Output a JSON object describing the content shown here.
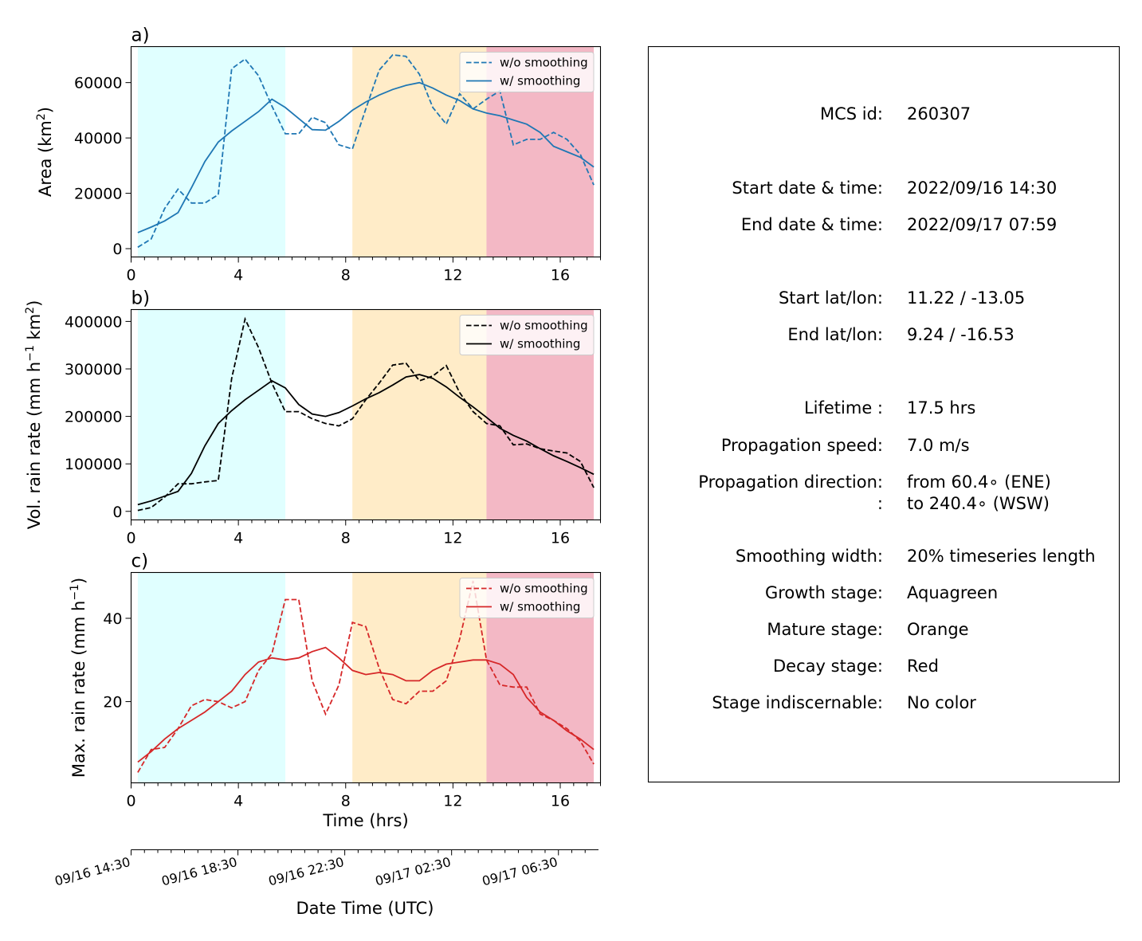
{
  "stage_colors": {
    "growth": "#e0ffff",
    "mature": "#ffecc8",
    "decay": "#f3b8c5"
  },
  "stage_spans": [
    {
      "stage": "growth",
      "start": 0.25,
      "end": 5.75
    },
    {
      "stage": "mature",
      "start": 8.25,
      "end": 13.25
    },
    {
      "stage": "decay",
      "start": 13.25,
      "end": 17.25
    }
  ],
  "legend": {
    "raw": "w/o smoothing",
    "smooth": "w/ smoothing"
  },
  "chart_data": [
    {
      "type": "line",
      "panel_label": "a)",
      "ylabel_main": "Area  (km",
      "ylabel_sup": "2",
      "ylabel_tail": ")",
      "color": "#1f77b4",
      "xlim": [
        0,
        17.5
      ],
      "ylim": [
        -3000,
        73000
      ],
      "xticks": [
        0,
        4,
        8,
        12,
        16
      ],
      "yticks": [
        0,
        20000,
        40000,
        60000
      ],
      "x": [
        0.25,
        0.75,
        1.25,
        1.75,
        2.25,
        2.75,
        3.25,
        3.75,
        4.25,
        4.75,
        5.25,
        5.75,
        6.25,
        6.75,
        7.25,
        7.75,
        8.25,
        8.75,
        9.25,
        9.75,
        10.25,
        10.75,
        11.25,
        11.75,
        12.25,
        12.75,
        13.25,
        13.75,
        14.25,
        14.75,
        15.25,
        15.75,
        16.25,
        16.75,
        17.25
      ],
      "series": [
        {
          "name": "w/o smoothing",
          "style": "dashed",
          "values": [
            500,
            3500,
            14500,
            21500,
            16500,
            16500,
            19500,
            65000,
            68500,
            62500,
            51500,
            41500,
            41500,
            47500,
            45500,
            37500,
            36000,
            50500,
            64500,
            70000,
            69500,
            63000,
            51000,
            45000,
            56000,
            50500,
            54000,
            57000,
            37500,
            39500,
            39500,
            42000,
            39500,
            34000,
            23000
          ]
        },
        {
          "name": "w/ smoothing",
          "style": "solid",
          "values": [
            5800,
            7800,
            10000,
            13000,
            22000,
            31500,
            38500,
            42500,
            46000,
            49500,
            54000,
            51000,
            47000,
            43000,
            42800,
            46000,
            50000,
            53000,
            55500,
            57500,
            59000,
            60000,
            58000,
            55500,
            53500,
            50500,
            49000,
            48000,
            46500,
            45000,
            42000,
            37000,
            35000,
            33000,
            29500
          ]
        }
      ]
    },
    {
      "type": "line",
      "panel_label": "b)",
      "ylabel_main": "Vol. rain rate (mm h",
      "ylabel_sup1": "−1",
      "ylabel_mid": " km",
      "ylabel_sup2": "2",
      "ylabel_tail": ")",
      "color": "#000000",
      "xlim": [
        0,
        17.5
      ],
      "ylim": [
        -18000,
        425000
      ],
      "xticks": [
        0,
        4,
        8,
        12,
        16
      ],
      "yticks": [
        0,
        100000,
        200000,
        300000,
        400000
      ],
      "x": [
        0.25,
        0.75,
        1.25,
        1.75,
        2.25,
        2.75,
        3.25,
        3.75,
        4.25,
        4.75,
        5.25,
        5.75,
        6.25,
        6.75,
        7.25,
        7.75,
        8.25,
        8.75,
        9.25,
        9.75,
        10.25,
        10.75,
        11.25,
        11.75,
        12.25,
        12.75,
        13.25,
        13.75,
        14.25,
        14.75,
        15.25,
        15.75,
        16.25,
        16.75,
        17.25
      ],
      "series": [
        {
          "name": "w/o smoothing",
          "style": "dashed",
          "values": [
            2000,
            8000,
            30000,
            58000,
            58000,
            62000,
            65000,
            280000,
            405000,
            345000,
            270000,
            210000,
            210000,
            195000,
            185000,
            180000,
            195000,
            235000,
            270000,
            308000,
            312000,
            275000,
            285000,
            307000,
            250000,
            210000,
            185000,
            180000,
            140000,
            142000,
            132000,
            127000,
            123000,
            105000,
            50000
          ]
        },
        {
          "name": "w/ smoothing",
          "style": "solid",
          "values": [
            14000,
            22000,
            32000,
            42000,
            80000,
            138000,
            185000,
            212000,
            235000,
            255000,
            275000,
            260000,
            225000,
            205000,
            200000,
            208000,
            222000,
            237000,
            250000,
            266000,
            283000,
            288000,
            280000,
            262000,
            240000,
            220000,
            198000,
            175000,
            160000,
            148000,
            132000,
            117000,
            105000,
            92000,
            78000
          ]
        }
      ]
    },
    {
      "type": "line",
      "panel_label": "c)",
      "ylabel_main": "Max. rain rate  (mm h",
      "ylabel_sup": "−1",
      "ylabel_tail": ")",
      "color": "#d62728",
      "xlim": [
        0,
        17.5
      ],
      "ylim": [
        0.5,
        51
      ],
      "xticks": [
        0,
        4,
        8,
        12,
        16
      ],
      "yticks": [
        20,
        40
      ],
      "x": [
        0.25,
        0.75,
        1.25,
        1.75,
        2.25,
        2.75,
        3.25,
        3.75,
        4.25,
        4.75,
        5.25,
        5.75,
        6.25,
        6.75,
        7.25,
        7.75,
        8.25,
        8.75,
        9.25,
        9.75,
        10.25,
        10.75,
        11.25,
        11.75,
        12.25,
        12.75,
        13.25,
        13.75,
        14.25,
        14.75,
        15.25,
        15.75,
        16.25,
        16.75,
        17.25
      ],
      "series": [
        {
          "name": "w/o smoothing",
          "style": "dashed",
          "values": [
            3,
            8.5,
            9,
            13.5,
            19,
            20.5,
            20,
            18.5,
            20,
            27.5,
            31.5,
            44.5,
            44.5,
            25,
            17,
            24,
            39,
            38,
            28,
            20.5,
            19.5,
            22.5,
            22.5,
            25,
            35,
            49,
            30,
            24,
            23.5,
            23.5,
            17,
            15.5,
            13.5,
            10.5,
            5
          ]
        },
        {
          "name": "w/ smoothing",
          "style": "solid",
          "values": [
            5.5,
            8,
            11,
            13.5,
            15.5,
            17.5,
            20,
            22.5,
            26.5,
            29.5,
            30.5,
            30,
            30.5,
            32,
            33,
            30.5,
            27.5,
            26.5,
            27,
            26.5,
            25,
            25,
            27.5,
            29,
            29.5,
            30,
            30,
            29,
            26.5,
            21,
            17.5,
            15.5,
            13,
            11,
            8.5
          ]
        }
      ]
    }
  ],
  "bottom_axes": {
    "time_label": "Time (hrs)",
    "datetime_label": "Date Time (UTC)",
    "datetime_ticks": [
      {
        "hour": 0,
        "label": "09/16 14:30"
      },
      {
        "hour": 4,
        "label": "09/16 18:30"
      },
      {
        "hour": 8,
        "label": "09/16 22:30"
      },
      {
        "hour": 12,
        "label": "09/17 02:30"
      },
      {
        "hour": 16,
        "label": "09/17 06:30"
      }
    ]
  },
  "info_panel": {
    "rows": [
      {
        "key": "MCS id:",
        "value": [
          "260307"
        ]
      },
      {
        "key": "Start date & time:",
        "value": [
          "2022/09/16 14:30"
        ]
      },
      {
        "key": "End date & time:",
        "value": [
          "2022/09/17 07:59"
        ]
      },
      {
        "key": "Start lat/lon:",
        "value": [
          "11.22 / -13.05"
        ]
      },
      {
        "key": "End lat/lon:",
        "value": [
          "9.24 / -16.53"
        ]
      },
      {
        "key": "Lifetime :",
        "value": [
          "17.5 hrs"
        ]
      },
      {
        "key": "Propagation speed:",
        "value": [
          "7.0 m/s"
        ]
      },
      {
        "key": "Propagation direction:",
        "key2": ":",
        "value": [
          "from  60.4∘ (ENE)",
          "to   240.4∘ (WSW)"
        ]
      },
      {
        "key": "Smoothing width:",
        "value": [
          "20% timeseries length"
        ]
      },
      {
        "key": "Growth stage:",
        "value": [
          "Aquagreen"
        ]
      },
      {
        "key": "Mature stage:",
        "value": [
          "Orange"
        ]
      },
      {
        "key": "Decay stage:",
        "value": [
          "Red"
        ]
      },
      {
        "key": "Stage indiscernable:",
        "value": [
          "No color"
        ]
      }
    ]
  }
}
